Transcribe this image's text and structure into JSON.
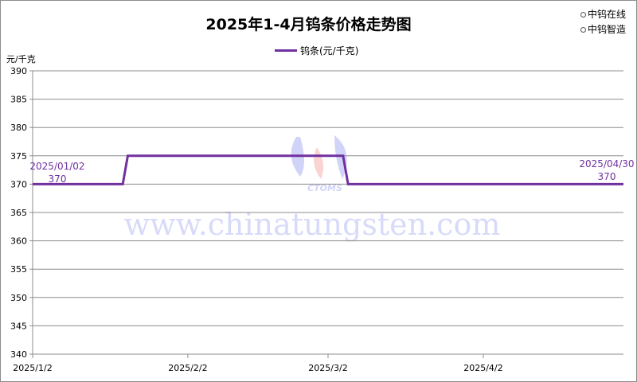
{
  "brand": {
    "line1": "中钨在线",
    "line2": "中钨智造"
  },
  "watermark": {
    "text": "www.chinatungsten.com",
    "logo_text": "CTOMS"
  },
  "chart_data": {
    "type": "line",
    "title": "2025年1-4月钨条价格走势图",
    "ylabel": "元/千克",
    "xlabel": "",
    "ylim": [
      340,
      390
    ],
    "yticks": [
      340,
      345,
      350,
      355,
      360,
      365,
      370,
      375,
      380,
      385,
      390
    ],
    "xlim": [
      "2025-01-02",
      "2025-04-30"
    ],
    "xticks": [
      {
        "date": "2025-01-02",
        "label": "2025/1/2"
      },
      {
        "date": "2025-02-02",
        "label": "2025/2/2"
      },
      {
        "date": "2025-03-02",
        "label": "2025/3/2"
      },
      {
        "date": "2025-04-02",
        "label": "2025/4/2"
      }
    ],
    "grid": true,
    "legend_position": "top",
    "series": [
      {
        "name": "钨条(元/千克)",
        "color": "#7030a0",
        "points": [
          {
            "x": "2025-01-02",
            "y": 370
          },
          {
            "x": "2025-01-20",
            "y": 370
          },
          {
            "x": "2025-01-21",
            "y": 375
          },
          {
            "x": "2025-03-05",
            "y": 375
          },
          {
            "x": "2025-03-06",
            "y": 370
          },
          {
            "x": "2025-04-30",
            "y": 370
          }
        ]
      }
    ],
    "annotations": [
      {
        "date_label": "2025/01/02",
        "value_label": "370"
      },
      {
        "date_label": "2025/04/30",
        "value_label": "370"
      }
    ]
  }
}
